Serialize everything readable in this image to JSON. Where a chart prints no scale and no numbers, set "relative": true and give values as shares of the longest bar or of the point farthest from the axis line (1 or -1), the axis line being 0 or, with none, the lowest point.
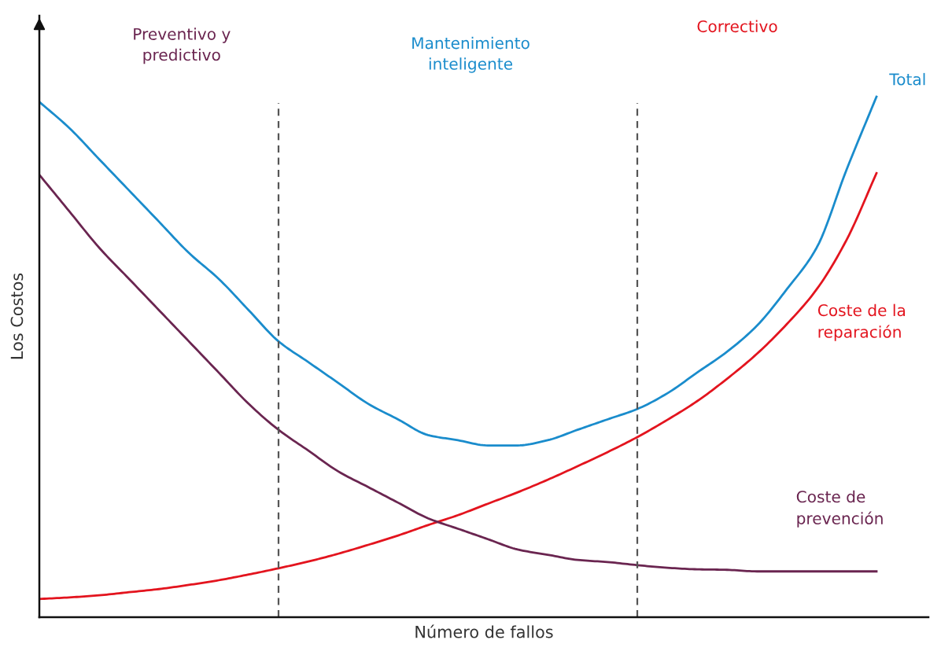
{
  "chart_data": {
    "type": "line",
    "relative": true,
    "xlabel": "Número de fallos",
    "ylabel": "Los Costos",
    "categories": [
      null,
      null,
      null,
      null,
      null,
      null,
      null,
      null,
      null,
      null,
      null,
      null,
      null,
      null,
      null,
      null,
      null,
      null,
      null,
      null,
      null,
      null,
      null,
      null,
      null,
      null,
      null,
      null,
      null
    ],
    "series": [
      {
        "name": "Total",
        "color": "#1a8ccc",
        "values": [
          0.99,
          0.94,
          0.88,
          0.82,
          0.76,
          0.7,
          0.65,
          0.59,
          0.53,
          0.49,
          0.45,
          0.41,
          0.38,
          0.35,
          0.34,
          0.33,
          0.33,
          0.34,
          0.36,
          0.38,
          0.4,
          0.43,
          0.47,
          0.51,
          0.56,
          0.63,
          0.71,
          0.86,
          1.0
        ]
      },
      {
        "name": "Coste de la\nreparación",
        "color": "#e3141e",
        "values": [
          0.035,
          0.038,
          0.042,
          0.048,
          0.054,
          0.062,
          0.071,
          0.082,
          0.094,
          0.107,
          0.122,
          0.139,
          0.157,
          0.177,
          0.196,
          0.218,
          0.24,
          0.264,
          0.29,
          0.317,
          0.346,
          0.379,
          0.415,
          0.458,
          0.506,
          0.563,
          0.63,
          0.725,
          0.853
        ]
      },
      {
        "name": "Coste de\nprevención",
        "color": "#6a2550",
        "values": [
          0.85,
          0.78,
          0.71,
          0.65,
          0.59,
          0.53,
          0.47,
          0.41,
          0.36,
          0.32,
          0.28,
          0.25,
          0.22,
          0.19,
          0.17,
          0.15,
          0.13,
          0.12,
          0.11,
          0.106,
          0.1,
          0.095,
          0.092,
          0.091,
          0.088,
          0.088,
          0.088,
          0.088,
          0.088
        ]
      }
    ],
    "annotations": [
      "Preventivo y\npredictivo",
      "Mantenimiento\ninteligente",
      "Correctivo"
    ]
  }
}
